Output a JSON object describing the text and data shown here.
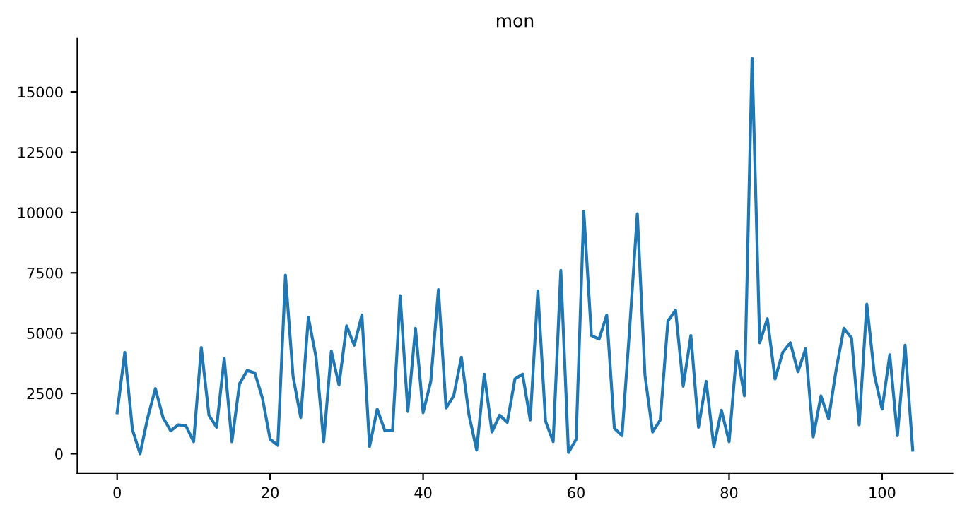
{
  "chart_data": {
    "type": "line",
    "title": "mon",
    "x": [
      0,
      1,
      2,
      3,
      4,
      5,
      6,
      7,
      8,
      9,
      10,
      11,
      12,
      13,
      14,
      15,
      16,
      17,
      18,
      19,
      20,
      21,
      22,
      23,
      24,
      25,
      26,
      27,
      28,
      29,
      30,
      31,
      32,
      33,
      34,
      35,
      36,
      37,
      38,
      39,
      40,
      41,
      42,
      43,
      44,
      45,
      46,
      47,
      48,
      49,
      50,
      51,
      52,
      53,
      54,
      55,
      56,
      57,
      58,
      59,
      60,
      61,
      62,
      63,
      64,
      65,
      66,
      67,
      68,
      69,
      70,
      71,
      72,
      73,
      74,
      75,
      76,
      77,
      78,
      79,
      80,
      81,
      82,
      83,
      84,
      85,
      86,
      87,
      88,
      89,
      90,
      91,
      92,
      93,
      94,
      95,
      96,
      97,
      98,
      99,
      100,
      101,
      102,
      103,
      104
    ],
    "series": [
      {
        "color": "#1f77b4",
        "values": [
          1700,
          4200,
          1000,
          0,
          1500,
          2700,
          1500,
          950,
          1200,
          1150,
          500,
          4400,
          1600,
          1100,
          3950,
          500,
          2900,
          3450,
          3350,
          2300,
          600,
          350,
          7400,
          3200,
          1500,
          5650,
          4000,
          500,
          4250,
          2850,
          5300,
          4500,
          5750,
          300,
          1850,
          950,
          950,
          6550,
          1750,
          5200,
          1700,
          3000,
          6800,
          1900,
          2400,
          4000,
          1600,
          150,
          3300,
          900,
          1600,
          1300,
          3100,
          3300,
          1400,
          6750,
          1350,
          500,
          7600,
          50,
          600,
          10050,
          4900,
          4750,
          5750,
          1050,
          750,
          5200,
          9950,
          3250,
          900,
          1400,
          5500,
          5950,
          2800,
          4900,
          1100,
          3000,
          300,
          1800,
          500,
          4250,
          2400,
          16400,
          4600,
          5600,
          3100,
          4200,
          4600,
          3400,
          4350,
          700,
          2400,
          1450,
          3500,
          5200,
          4800,
          1200,
          6200,
          3250,
          1850,
          4100,
          750,
          4500,
          150
        ]
      }
    ],
    "xlim": [
      -5.2,
      109.2
    ],
    "ylim": [
      -800,
      17200
    ],
    "xticks": [
      0,
      20,
      40,
      60,
      80,
      100
    ],
    "yticks": [
      0,
      2500,
      5000,
      7500,
      10000,
      12500,
      15000
    ],
    "grid": false,
    "legend": false
  }
}
